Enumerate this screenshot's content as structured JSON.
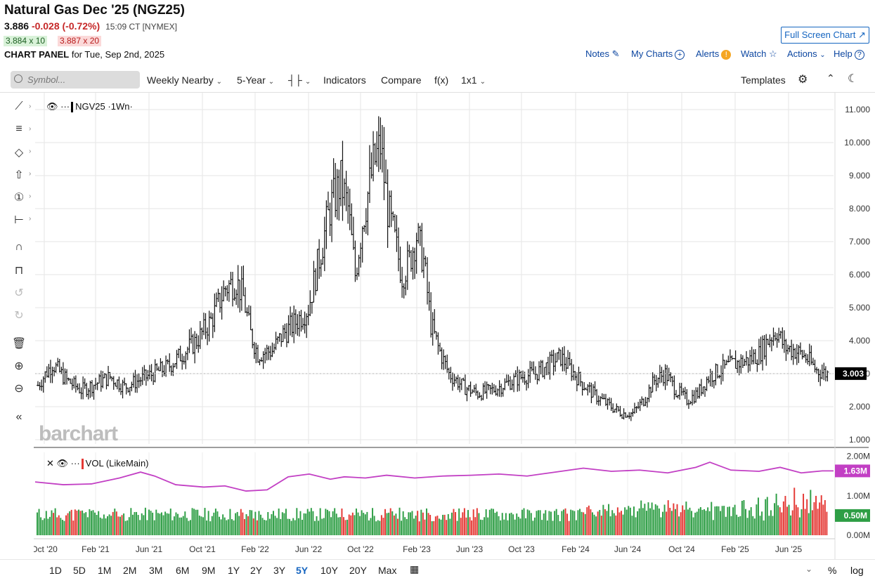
{
  "header": {
    "title": "Natural Gas Dec '25 (NGZ25)",
    "price": "3.886",
    "change": "-0.028 (-0.72%)",
    "timestamp": "15:09 CT [NYMEX]",
    "bid": "3.884 x 10",
    "ask": "3.887 x 20",
    "panel_label_bold": "CHART PANEL",
    "panel_label_rest": "for Tue, Sep 2nd, 2025",
    "fullscreen_label": "Full Screen Chart"
  },
  "top_links": [
    {
      "label": "Notes",
      "icon": "note-edit-icon"
    },
    {
      "label": "My Charts",
      "icon": "plus-circle-icon"
    },
    {
      "label": "Alerts",
      "icon": "alert-badge-icon"
    },
    {
      "label": "Watch",
      "icon": "star-icon"
    },
    {
      "label": "Actions",
      "icon": "chevron-down-icon"
    },
    {
      "label": "Help",
      "icon": "question-circle-icon"
    }
  ],
  "toolbar": {
    "search_placeholder": "Symbol...",
    "interval": "Weekly Nearby",
    "range": "5-Year",
    "chart_type_icon": "candlestick-icon",
    "indicators": "Indicators",
    "compare": "Compare",
    "fx": "f(x)",
    "layout": "1x1",
    "templates": "Templates"
  },
  "left_tools": [
    "line-draw-icon",
    "fib-icon",
    "shapes-icon",
    "arrow-icon",
    "annotation-icon",
    "measure-icon",
    "magnet-icon",
    "lock-icon",
    "undo-icon",
    "redo-icon",
    "trash-icon",
    "zoom-in-icon",
    "zoom-out-icon",
    "collapse-icon"
  ],
  "main_legend": {
    "symbol": "NGV25",
    "interval": "1Wn",
    "color": "#000000"
  },
  "volume_legend": {
    "label": "VOL (LikeMain)",
    "color": "#e53935"
  },
  "brand": "barchart",
  "periods": [
    "1D",
    "5D",
    "1M",
    "2M",
    "3M",
    "6M",
    "9M",
    "1Y",
    "2Y",
    "3Y",
    "5Y",
    "10Y",
    "20Y",
    "Max"
  ],
  "active_period": "5Y",
  "bottom_right": {
    "percent": "%",
    "log": "log"
  },
  "chart_data": {
    "type": "ohlc",
    "price_axis": {
      "ticks": [
        "11.000",
        "10.000",
        "9.000",
        "8.000",
        "7.000",
        "6.000",
        "5.000",
        "4.000",
        "3.000",
        "2.000",
        "1.000"
      ],
      "min": 1,
      "max": 11
    },
    "last_price_tag": "3.003",
    "x_ticks": [
      "Oct '20",
      "Feb '21",
      "Jun '21",
      "Oct '21",
      "Feb '22",
      "Jun '22",
      "Oct '22",
      "Feb '23",
      "Jun '23",
      "Oct '23",
      "Feb '24",
      "Jun '24",
      "Oct '24",
      "Feb '25",
      "Jun '25"
    ],
    "close_path": [
      [
        0,
        2.65
      ],
      [
        8,
        3.3
      ],
      [
        16,
        2.8
      ],
      [
        24,
        2.5
      ],
      [
        32,
        2.7
      ],
      [
        40,
        2.9
      ],
      [
        48,
        2.6
      ],
      [
        56,
        2.8
      ],
      [
        64,
        3.0
      ],
      [
        72,
        3.2
      ],
      [
        80,
        3.6
      ],
      [
        88,
        4.0
      ],
      [
        96,
        4.6
      ],
      [
        104,
        5.6
      ],
      [
        110,
        5.8
      ],
      [
        114,
        5.3
      ],
      [
        118,
        4.2
      ],
      [
        122,
        3.6
      ],
      [
        130,
        3.7
      ],
      [
        136,
        4.2
      ],
      [
        142,
        4.5
      ],
      [
        150,
        5.0
      ],
      [
        156,
        6.5
      ],
      [
        162,
        8.0
      ],
      [
        168,
        8.8
      ],
      [
        172,
        8.0
      ],
      [
        176,
        6.0
      ],
      [
        180,
        7.6
      ],
      [
        186,
        9.3
      ],
      [
        190,
        9.9
      ],
      [
        194,
        8.0
      ],
      [
        198,
        7.0
      ],
      [
        202,
        6.0
      ],
      [
        206,
        6.4
      ],
      [
        210,
        7.2
      ],
      [
        214,
        6.4
      ],
      [
        218,
        4.5
      ],
      [
        222,
        3.8
      ],
      [
        228,
        3.0
      ],
      [
        236,
        2.6
      ],
      [
        244,
        2.4
      ],
      [
        252,
        2.5
      ],
      [
        260,
        2.7
      ],
      [
        268,
        2.9
      ],
      [
        276,
        3.0
      ],
      [
        284,
        3.3
      ],
      [
        290,
        3.5
      ],
      [
        296,
        3.1
      ],
      [
        302,
        2.7
      ],
      [
        310,
        2.3
      ],
      [
        318,
        2.0
      ],
      [
        324,
        1.8
      ],
      [
        330,
        1.8
      ],
      [
        336,
        2.2
      ],
      [
        342,
        2.8
      ],
      [
        348,
        3.0
      ],
      [
        354,
        2.5
      ],
      [
        360,
        2.2
      ],
      [
        366,
        2.4
      ],
      [
        372,
        2.9
      ],
      [
        378,
        3.1
      ],
      [
        386,
        3.3
      ],
      [
        394,
        3.4
      ],
      [
        400,
        3.6
      ],
      [
        406,
        4.1
      ],
      [
        410,
        4.3
      ],
      [
        414,
        3.8
      ],
      [
        420,
        3.7
      ],
      [
        426,
        3.5
      ],
      [
        432,
        3.1
      ],
      [
        438,
        3.0
      ]
    ],
    "volume": {
      "axis_ticks": [
        "2.00M",
        "1.00M",
        "0.50M",
        "0.00M"
      ],
      "avg_tag": "1.63M",
      "last_tag": "0.50M",
      "avg_color": "#c23fc4",
      "up_color": "#2e9e45",
      "down_color": "#e53935"
    }
  }
}
